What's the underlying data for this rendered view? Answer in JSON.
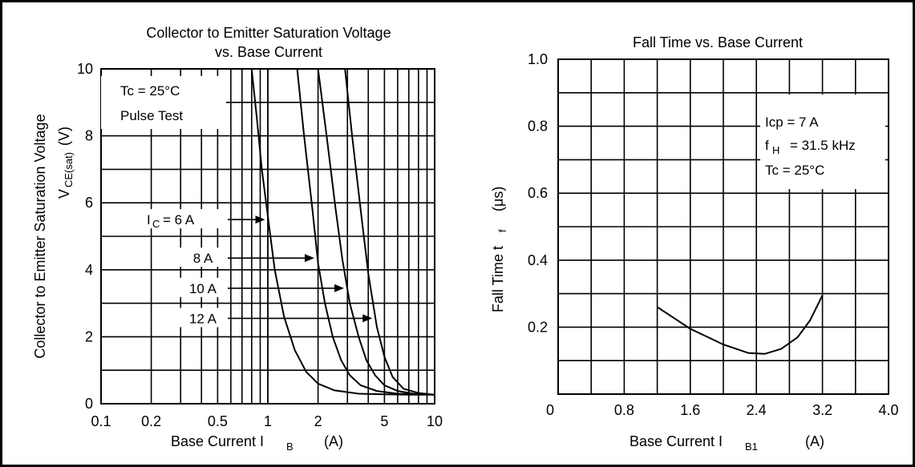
{
  "chart_data": [
    {
      "type": "line",
      "title": "Collector to Emitter Saturation Voltage",
      "subtitle": "vs. Base Current",
      "xlabel": "Base Current  I",
      "xlabel_sub": "B",
      "xlabel_unit": "(A)",
      "ylabel": "Collector to Emitter Saturation Voltage",
      "ylabel2": "V",
      "ylabel2_sub": "CE(sat)",
      "ylabel2_unit": "(V)",
      "x_scale": "log",
      "xlim": [
        0.1,
        10
      ],
      "ylim": [
        0,
        10
      ],
      "x_ticks": [
        "0.1",
        "0.2",
        "0.5",
        "1",
        "2",
        "5",
        "10"
      ],
      "y_ticks": [
        "0",
        "2",
        "4",
        "6",
        "8",
        "10"
      ],
      "grid": true,
      "conditions": [
        "Tc = 25°C",
        "Pulse Test"
      ],
      "series": [
        {
          "name": "IC = 6 A",
          "label_prefix": "I",
          "label_sub": "C",
          "label_main": "= 6 A",
          "x": [
            0.8,
            0.86,
            0.92,
            1.0,
            1.1,
            1.25,
            1.45,
            1.7,
            2.0,
            2.5,
            3.5,
            5.0,
            7.0,
            10.0
          ],
          "y": [
            10.0,
            8.5,
            7.0,
            5.6,
            4.0,
            2.6,
            1.6,
            0.95,
            0.6,
            0.4,
            0.3,
            0.28,
            0.27,
            0.27
          ]
        },
        {
          "name": "8 A",
          "label_main": "8 A",
          "x": [
            1.5,
            1.65,
            1.85,
            2.0,
            2.2,
            2.45,
            2.75,
            3.1,
            3.6,
            4.5,
            6.0,
            8.0,
            10.0
          ],
          "y": [
            10.0,
            8.0,
            5.8,
            4.2,
            3.0,
            2.0,
            1.3,
            0.85,
            0.55,
            0.38,
            0.3,
            0.28,
            0.27
          ]
        },
        {
          "name": "10 A",
          "label_main": "10 A",
          "x": [
            2.0,
            2.25,
            2.55,
            2.8,
            3.1,
            3.5,
            3.9,
            4.4,
            5.0,
            6.0,
            7.5,
            10.0
          ],
          "y": [
            10.0,
            8.0,
            5.8,
            4.3,
            3.0,
            2.0,
            1.3,
            0.85,
            0.55,
            0.38,
            0.3,
            0.27
          ]
        },
        {
          "name": "12 A",
          "label_main": "12 A",
          "x": [
            2.9,
            3.2,
            3.6,
            4.0,
            4.5,
            5.0,
            5.6,
            6.5,
            8.0,
            10.0
          ],
          "y": [
            10.0,
            8.0,
            5.8,
            3.9,
            2.3,
            1.4,
            0.8,
            0.45,
            0.32,
            0.27
          ]
        }
      ],
      "annotation_targets_y": [
        5.5,
        4.35,
        3.45,
        2.55
      ]
    },
    {
      "type": "line",
      "title": "Fall Time vs. Base Current",
      "xlabel": "Base Current  I",
      "xlabel_sub": "B1",
      "xlabel_unit": "(A)",
      "ylabel": "Fall Time  t",
      "ylabel_sub": "f",
      "ylabel_unit": "(μs)",
      "xlim": [
        0,
        4.0
      ],
      "ylim": [
        0,
        1.0
      ],
      "x_ticks": [
        "0",
        "0.8",
        "1.6",
        "2.4",
        "3.2",
        "4.0"
      ],
      "y_ticks": [
        "0.2",
        "0.4",
        "0.6",
        "0.8",
        "1.0"
      ],
      "grid": true,
      "conditions": [
        "Icp = 7 A",
        "f",
        "H",
        "= 31.5 kHz",
        "Tc = 25°C"
      ],
      "series": [
        {
          "x": [
            1.2,
            1.6,
            2.0,
            2.3,
            2.5,
            2.7,
            2.9,
            3.05,
            3.2
          ],
          "y": [
            0.26,
            0.195,
            0.148,
            0.123,
            0.12,
            0.135,
            0.17,
            0.22,
            0.295
          ]
        }
      ]
    }
  ]
}
